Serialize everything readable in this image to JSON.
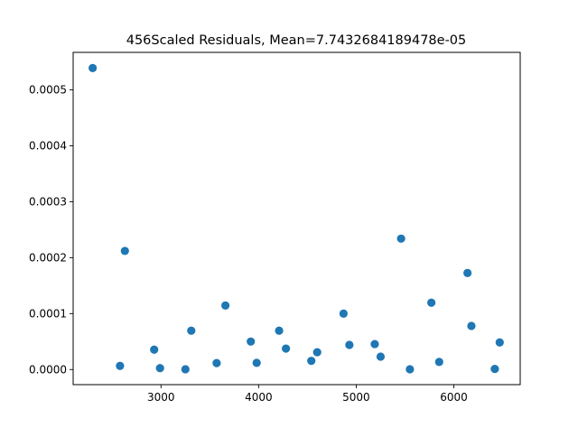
{
  "chart_data": {
    "type": "scatter",
    "title": "456Scaled Residuals, Mean=7.7432684189478e-05",
    "xlabel": "",
    "ylabel": "",
    "xlim": [
      2100,
      6680
    ],
    "ylim": [
      -2.7e-05,
      0.000567
    ],
    "x_ticks": [
      3000,
      4000,
      5000,
      6000
    ],
    "x_tick_labels": [
      "3000",
      "4000",
      "5000",
      "6000"
    ],
    "y_ticks": [
      0.0,
      0.0001,
      0.0002,
      0.0003,
      0.0004,
      0.0005
    ],
    "y_tick_labels": [
      "0.0000",
      "0.0001",
      "0.0002",
      "0.0003",
      "0.0004",
      "0.0005"
    ],
    "grid": false,
    "marker_color": "#1f77b4",
    "x": [
      2300,
      2580,
      2630,
      2930,
      2990,
      3250,
      3310,
      3570,
      3660,
      3920,
      3980,
      4210,
      4280,
      4540,
      4600,
      4870,
      4930,
      5190,
      5250,
      5460,
      5550,
      5770,
      5850,
      6140,
      6180,
      6420,
      6470
    ],
    "y": [
      0.000539,
      6.5e-06,
      0.000212,
      3.55e-05,
      2.5e-06,
      5e-07,
      6.95e-05,
      1.15e-05,
      0.0001145,
      5e-05,
      1.2e-05,
      6.95e-05,
      3.75e-05,
      1.55e-05,
      3.1e-05,
      0.0001,
      4.4e-05,
      4.55e-05,
      2.3e-05,
      0.000234,
      5e-07,
      0.0001195,
      1.35e-05,
      0.0001725,
      7.8e-05,
      1e-06,
      4.85e-05
    ]
  }
}
